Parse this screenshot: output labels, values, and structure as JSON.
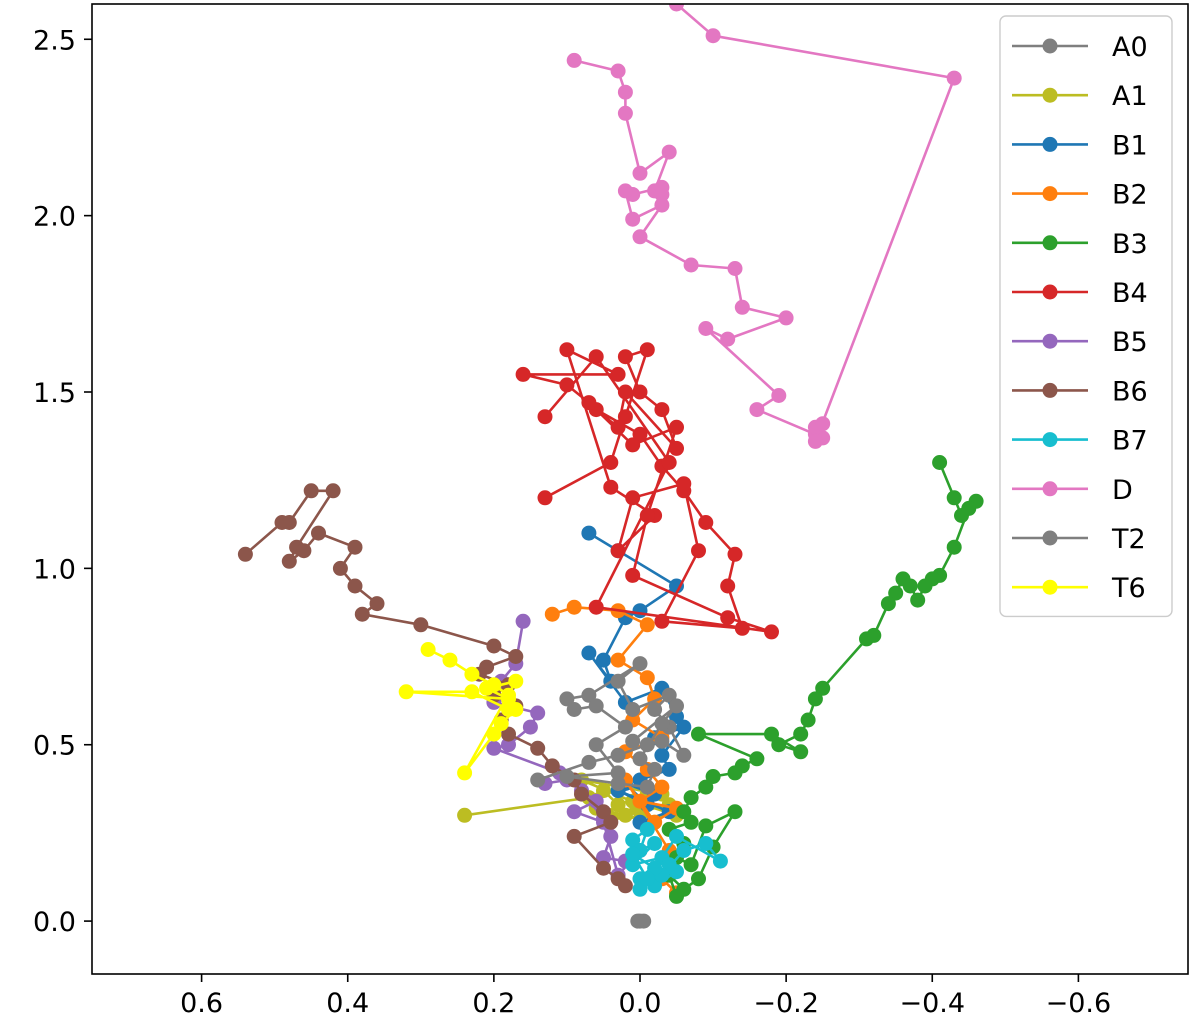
{
  "chart_data": {
    "type": "line",
    "title": "",
    "xlabel": "",
    "ylabel": "",
    "x_inverted": true,
    "xlim": [
      0.75,
      -0.75
    ],
    "ylim": [
      -0.15,
      2.6
    ],
    "x_ticks": [
      0.6,
      0.4,
      0.2,
      0.0,
      -0.2,
      -0.4,
      -0.6
    ],
    "x_tick_labels": [
      "0.6",
      "0.4",
      "0.2",
      "0.0",
      "−0.2",
      "−0.4",
      "−0.6"
    ],
    "y_ticks": [
      0.0,
      0.5,
      1.0,
      1.5,
      2.0,
      2.5
    ],
    "y_tick_labels": [
      "0.0",
      "0.5",
      "1.0",
      "1.5",
      "2.0",
      "2.5"
    ],
    "grid": false,
    "legend_position": "top-right",
    "series": [
      {
        "name": "A0",
        "color": "#7f7f7f",
        "points": [
          [
            0.0,
            0.0
          ],
          [
            -0.005,
            0.0
          ],
          [
            0.003,
            0.0
          ]
        ]
      },
      {
        "name": "A1",
        "color": "#bcbd22",
        "points": [
          [
            0.24,
            0.3
          ],
          [
            0.07,
            0.35
          ],
          [
            0.05,
            0.37
          ],
          [
            0.03,
            0.33
          ],
          [
            -0.01,
            0.36
          ],
          [
            0.02,
            0.3
          ],
          [
            -0.04,
            0.33
          ],
          [
            0.0,
            0.31
          ],
          [
            0.06,
            0.32
          ],
          [
            -0.02,
            0.28
          ],
          [
            0.01,
            0.34
          ],
          [
            -0.05,
            0.3
          ],
          [
            0.04,
            0.29
          ],
          [
            -0.03,
            0.36
          ],
          [
            0.08,
            0.4
          ],
          [
            0.0,
            0.33
          ]
        ]
      },
      {
        "name": "B1",
        "color": "#1f77b4",
        "points": [
          [
            0.07,
            1.1
          ],
          [
            0.03,
            1.05
          ],
          [
            -0.05,
            0.95
          ],
          [
            0.0,
            0.88
          ],
          [
            0.02,
            0.86
          ],
          [
            0.05,
            0.74
          ],
          [
            0.04,
            0.68
          ],
          [
            0.07,
            0.76
          ],
          [
            0.02,
            0.62
          ],
          [
            -0.03,
            0.66
          ],
          [
            -0.05,
            0.58
          ],
          [
            -0.02,
            0.52
          ],
          [
            -0.06,
            0.55
          ],
          [
            -0.03,
            0.47
          ],
          [
            -0.04,
            0.43
          ],
          [
            0.0,
            0.4
          ],
          [
            -0.02,
            0.36
          ],
          [
            0.02,
            0.39
          ],
          [
            -0.01,
            0.33
          ],
          [
            0.03,
            0.37
          ],
          [
            -0.04,
            0.31
          ],
          [
            0.0,
            0.28
          ]
        ]
      },
      {
        "name": "B2",
        "color": "#ff7f0e",
        "points": [
          [
            0.12,
            0.87
          ],
          [
            0.09,
            0.89
          ],
          [
            0.03,
            0.88
          ],
          [
            -0.01,
            0.84
          ],
          [
            0.03,
            0.74
          ],
          [
            -0.01,
            0.69
          ],
          [
            -0.02,
            0.63
          ],
          [
            0.01,
            0.57
          ],
          [
            -0.03,
            0.52
          ],
          [
            0.02,
            0.48
          ],
          [
            -0.01,
            0.43
          ],
          [
            -0.03,
            0.38
          ],
          [
            0.0,
            0.34
          ],
          [
            -0.05,
            0.32
          ],
          [
            -0.02,
            0.28
          ],
          [
            0.02,
            0.4
          ],
          [
            -0.04,
            0.2
          ],
          [
            -0.03,
            0.12
          ],
          [
            -0.05,
            0.08
          ]
        ]
      },
      {
        "name": "B3",
        "color": "#2ca02c",
        "points": [
          [
            -0.41,
            1.3
          ],
          [
            -0.43,
            1.2
          ],
          [
            -0.44,
            1.15
          ],
          [
            -0.46,
            1.19
          ],
          [
            -0.45,
            1.17
          ],
          [
            -0.43,
            1.06
          ],
          [
            -0.41,
            0.98
          ],
          [
            -0.4,
            0.97
          ],
          [
            -0.39,
            0.95
          ],
          [
            -0.38,
            0.91
          ],
          [
            -0.37,
            0.95
          ],
          [
            -0.36,
            0.97
          ],
          [
            -0.35,
            0.93
          ],
          [
            -0.34,
            0.9
          ],
          [
            -0.32,
            0.81
          ],
          [
            -0.31,
            0.8
          ],
          [
            -0.25,
            0.66
          ],
          [
            -0.24,
            0.63
          ],
          [
            -0.23,
            0.57
          ],
          [
            -0.22,
            0.53
          ],
          [
            -0.19,
            0.5
          ],
          [
            -0.22,
            0.48
          ],
          [
            -0.18,
            0.53
          ],
          [
            -0.08,
            0.53
          ],
          [
            -0.16,
            0.46
          ],
          [
            -0.14,
            0.44
          ],
          [
            -0.13,
            0.42
          ],
          [
            -0.1,
            0.41
          ],
          [
            -0.09,
            0.38
          ],
          [
            -0.07,
            0.35
          ],
          [
            -0.06,
            0.31
          ],
          [
            -0.07,
            0.28
          ],
          [
            -0.04,
            0.26
          ],
          [
            -0.06,
            0.22
          ],
          [
            -0.05,
            0.18
          ],
          [
            -0.07,
            0.16
          ],
          [
            -0.09,
            0.27
          ],
          [
            -0.13,
            0.31
          ],
          [
            -0.1,
            0.21
          ],
          [
            -0.08,
            0.12
          ],
          [
            -0.06,
            0.09
          ],
          [
            -0.04,
            0.13
          ],
          [
            -0.05,
            0.07
          ]
        ]
      },
      {
        "name": "B4",
        "color": "#d62728",
        "points": [
          [
            0.13,
            1.2
          ],
          [
            0.04,
            1.3
          ],
          [
            0.02,
            1.43
          ],
          [
            -0.01,
            1.62
          ],
          [
            0.02,
            1.6
          ],
          [
            0.0,
            1.5
          ],
          [
            -0.03,
            1.45
          ],
          [
            -0.05,
            1.34
          ],
          [
            0.02,
            1.5
          ],
          [
            0.03,
            1.4
          ],
          [
            0.06,
            1.45
          ],
          [
            0.0,
            1.38
          ],
          [
            -0.03,
            1.29
          ],
          [
            -0.06,
            1.22
          ],
          [
            -0.09,
            1.13
          ],
          [
            -0.13,
            1.04
          ],
          [
            -0.12,
            0.95
          ],
          [
            -0.14,
            0.83
          ],
          [
            -0.03,
            0.85
          ],
          [
            -0.08,
            1.05
          ],
          [
            -0.06,
            1.24
          ],
          [
            0.01,
            1.2
          ],
          [
            0.03,
            1.05
          ],
          [
            -0.02,
            1.15
          ],
          [
            0.04,
            1.23
          ],
          [
            0.1,
            1.62
          ],
          [
            0.03,
            1.55
          ],
          [
            0.16,
            1.55
          ],
          [
            0.1,
            1.52
          ],
          [
            0.07,
            1.47
          ],
          [
            0.01,
            1.35
          ],
          [
            -0.05,
            1.4
          ],
          [
            -0.01,
            1.15
          ],
          [
            0.01,
            0.98
          ],
          [
            -0.12,
            0.86
          ],
          [
            -0.18,
            0.82
          ],
          [
            0.06,
            0.89
          ],
          [
            -0.04,
            1.3
          ],
          [
            0.06,
            1.6
          ],
          [
            0.13,
            1.43
          ]
        ]
      },
      {
        "name": "B5",
        "color": "#9467bd",
        "points": [
          [
            0.16,
            0.85
          ],
          [
            0.17,
            0.73
          ],
          [
            0.19,
            0.68
          ],
          [
            0.2,
            0.62
          ],
          [
            0.14,
            0.59
          ],
          [
            0.15,
            0.55
          ],
          [
            0.18,
            0.5
          ],
          [
            0.2,
            0.49
          ],
          [
            0.11,
            0.42
          ],
          [
            0.08,
            0.37
          ],
          [
            0.05,
            0.29
          ],
          [
            0.04,
            0.24
          ],
          [
            0.05,
            0.18
          ],
          [
            0.02,
            0.17
          ],
          [
            0.0,
            0.2
          ],
          [
            0.03,
            0.13
          ],
          [
            0.05,
            0.28
          ],
          [
            0.09,
            0.31
          ],
          [
            0.06,
            0.34
          ],
          [
            0.1,
            0.4
          ],
          [
            0.13,
            0.39
          ]
        ]
      },
      {
        "name": "B6",
        "color": "#8c564b",
        "points": [
          [
            0.54,
            1.04
          ],
          [
            0.49,
            1.13
          ],
          [
            0.48,
            1.13
          ],
          [
            0.45,
            1.22
          ],
          [
            0.42,
            1.22
          ],
          [
            0.47,
            1.06
          ],
          [
            0.48,
            1.02
          ],
          [
            0.46,
            1.05
          ],
          [
            0.44,
            1.1
          ],
          [
            0.39,
            1.06
          ],
          [
            0.41,
            1.0
          ],
          [
            0.39,
            0.95
          ],
          [
            0.36,
            0.9
          ],
          [
            0.38,
            0.87
          ],
          [
            0.3,
            0.84
          ],
          [
            0.2,
            0.78
          ],
          [
            0.17,
            0.75
          ],
          [
            0.21,
            0.72
          ],
          [
            0.22,
            0.7
          ],
          [
            0.18,
            0.67
          ],
          [
            0.2,
            0.64
          ],
          [
            0.17,
            0.61
          ],
          [
            0.19,
            0.57
          ],
          [
            0.18,
            0.53
          ],
          [
            0.14,
            0.49
          ],
          [
            0.12,
            0.44
          ],
          [
            0.09,
            0.4
          ],
          [
            0.08,
            0.36
          ],
          [
            0.05,
            0.31
          ],
          [
            0.04,
            0.28
          ],
          [
            0.09,
            0.24
          ],
          [
            0.05,
            0.15
          ],
          [
            0.03,
            0.12
          ],
          [
            0.02,
            0.1
          ]
        ]
      },
      {
        "name": "B7",
        "color": "#17becf",
        "points": [
          [
            0.01,
            0.23
          ],
          [
            -0.01,
            0.26
          ],
          [
            0.0,
            0.2
          ],
          [
            -0.02,
            0.22
          ],
          [
            0.01,
            0.16
          ],
          [
            -0.03,
            0.18
          ],
          [
            0.0,
            0.12
          ],
          [
            -0.05,
            0.14
          ],
          [
            -0.02,
            0.1
          ],
          [
            -0.04,
            0.16
          ],
          [
            0.0,
            0.09
          ],
          [
            -0.03,
            0.13
          ],
          [
            -0.06,
            0.2
          ],
          [
            -0.09,
            0.22
          ],
          [
            -0.11,
            0.17
          ],
          [
            -0.05,
            0.24
          ],
          [
            -0.02,
            0.15
          ],
          [
            0.01,
            0.19
          ],
          [
            -0.01,
            0.12
          ]
        ]
      },
      {
        "name": "D",
        "color": "#e377c2",
        "points": [
          [
            0.09,
            2.44
          ],
          [
            0.03,
            2.41
          ],
          [
            0.02,
            2.35
          ],
          [
            0.02,
            2.29
          ],
          [
            0.0,
            2.12
          ],
          [
            -0.04,
            2.18
          ],
          [
            -0.02,
            2.07
          ],
          [
            -0.03,
            2.06
          ],
          [
            -0.03,
            2.08
          ],
          [
            0.01,
            2.06
          ],
          [
            0.02,
            2.07
          ],
          [
            0.01,
            1.99
          ],
          [
            -0.03,
            2.03
          ],
          [
            0.0,
            1.94
          ],
          [
            -0.07,
            1.86
          ],
          [
            -0.13,
            1.85
          ],
          [
            -0.14,
            1.74
          ],
          [
            -0.2,
            1.71
          ],
          [
            -0.12,
            1.65
          ],
          [
            -0.09,
            1.68
          ],
          [
            -0.19,
            1.49
          ],
          [
            -0.16,
            1.45
          ],
          [
            -0.24,
            1.38
          ],
          [
            -0.25,
            1.37
          ],
          [
            -0.24,
            1.4
          ],
          [
            -0.25,
            1.41
          ],
          [
            -0.24,
            1.36
          ],
          [
            -0.43,
            2.39
          ],
          [
            -0.1,
            2.51
          ],
          [
            -0.05,
            2.6
          ]
        ]
      },
      {
        "name": "T2",
        "color": "#7f7f7f",
        "points": [
          [
            0.14,
            0.4
          ],
          [
            0.07,
            0.45
          ],
          [
            0.03,
            0.47
          ],
          [
            -0.01,
            0.5
          ],
          [
            -0.03,
            0.51
          ],
          [
            -0.06,
            0.47
          ],
          [
            -0.04,
            0.55
          ],
          [
            -0.02,
            0.6
          ],
          [
            -0.04,
            0.64
          ],
          [
            0.01,
            0.6
          ],
          [
            0.03,
            0.68
          ],
          [
            0.0,
            0.73
          ],
          [
            0.07,
            0.64
          ],
          [
            0.1,
            0.63
          ],
          [
            0.09,
            0.6
          ],
          [
            0.06,
            0.61
          ],
          [
            0.02,
            0.55
          ],
          [
            0.06,
            0.5
          ],
          [
            0.03,
            0.42
          ],
          [
            0.1,
            0.41
          ],
          [
            0.03,
            0.39
          ],
          [
            -0.01,
            0.38
          ],
          [
            -0.02,
            0.43
          ],
          [
            0.0,
            0.46
          ],
          [
            -0.03,
            0.56
          ],
          [
            -0.05,
            0.61
          ],
          [
            0.01,
            0.51
          ]
        ]
      },
      {
        "name": "T6",
        "color": "#ffff00",
        "points": [
          [
            0.29,
            0.77
          ],
          [
            0.26,
            0.74
          ],
          [
            0.23,
            0.7
          ],
          [
            0.2,
            0.67
          ],
          [
            0.18,
            0.64
          ],
          [
            0.17,
            0.6
          ],
          [
            0.19,
            0.56
          ],
          [
            0.2,
            0.53
          ],
          [
            0.24,
            0.42
          ],
          [
            0.17,
            0.68
          ],
          [
            0.21,
            0.66
          ],
          [
            0.18,
            0.63
          ],
          [
            0.32,
            0.65
          ],
          [
            0.23,
            0.65
          ],
          [
            0.18,
            0.6
          ]
        ]
      }
    ]
  }
}
